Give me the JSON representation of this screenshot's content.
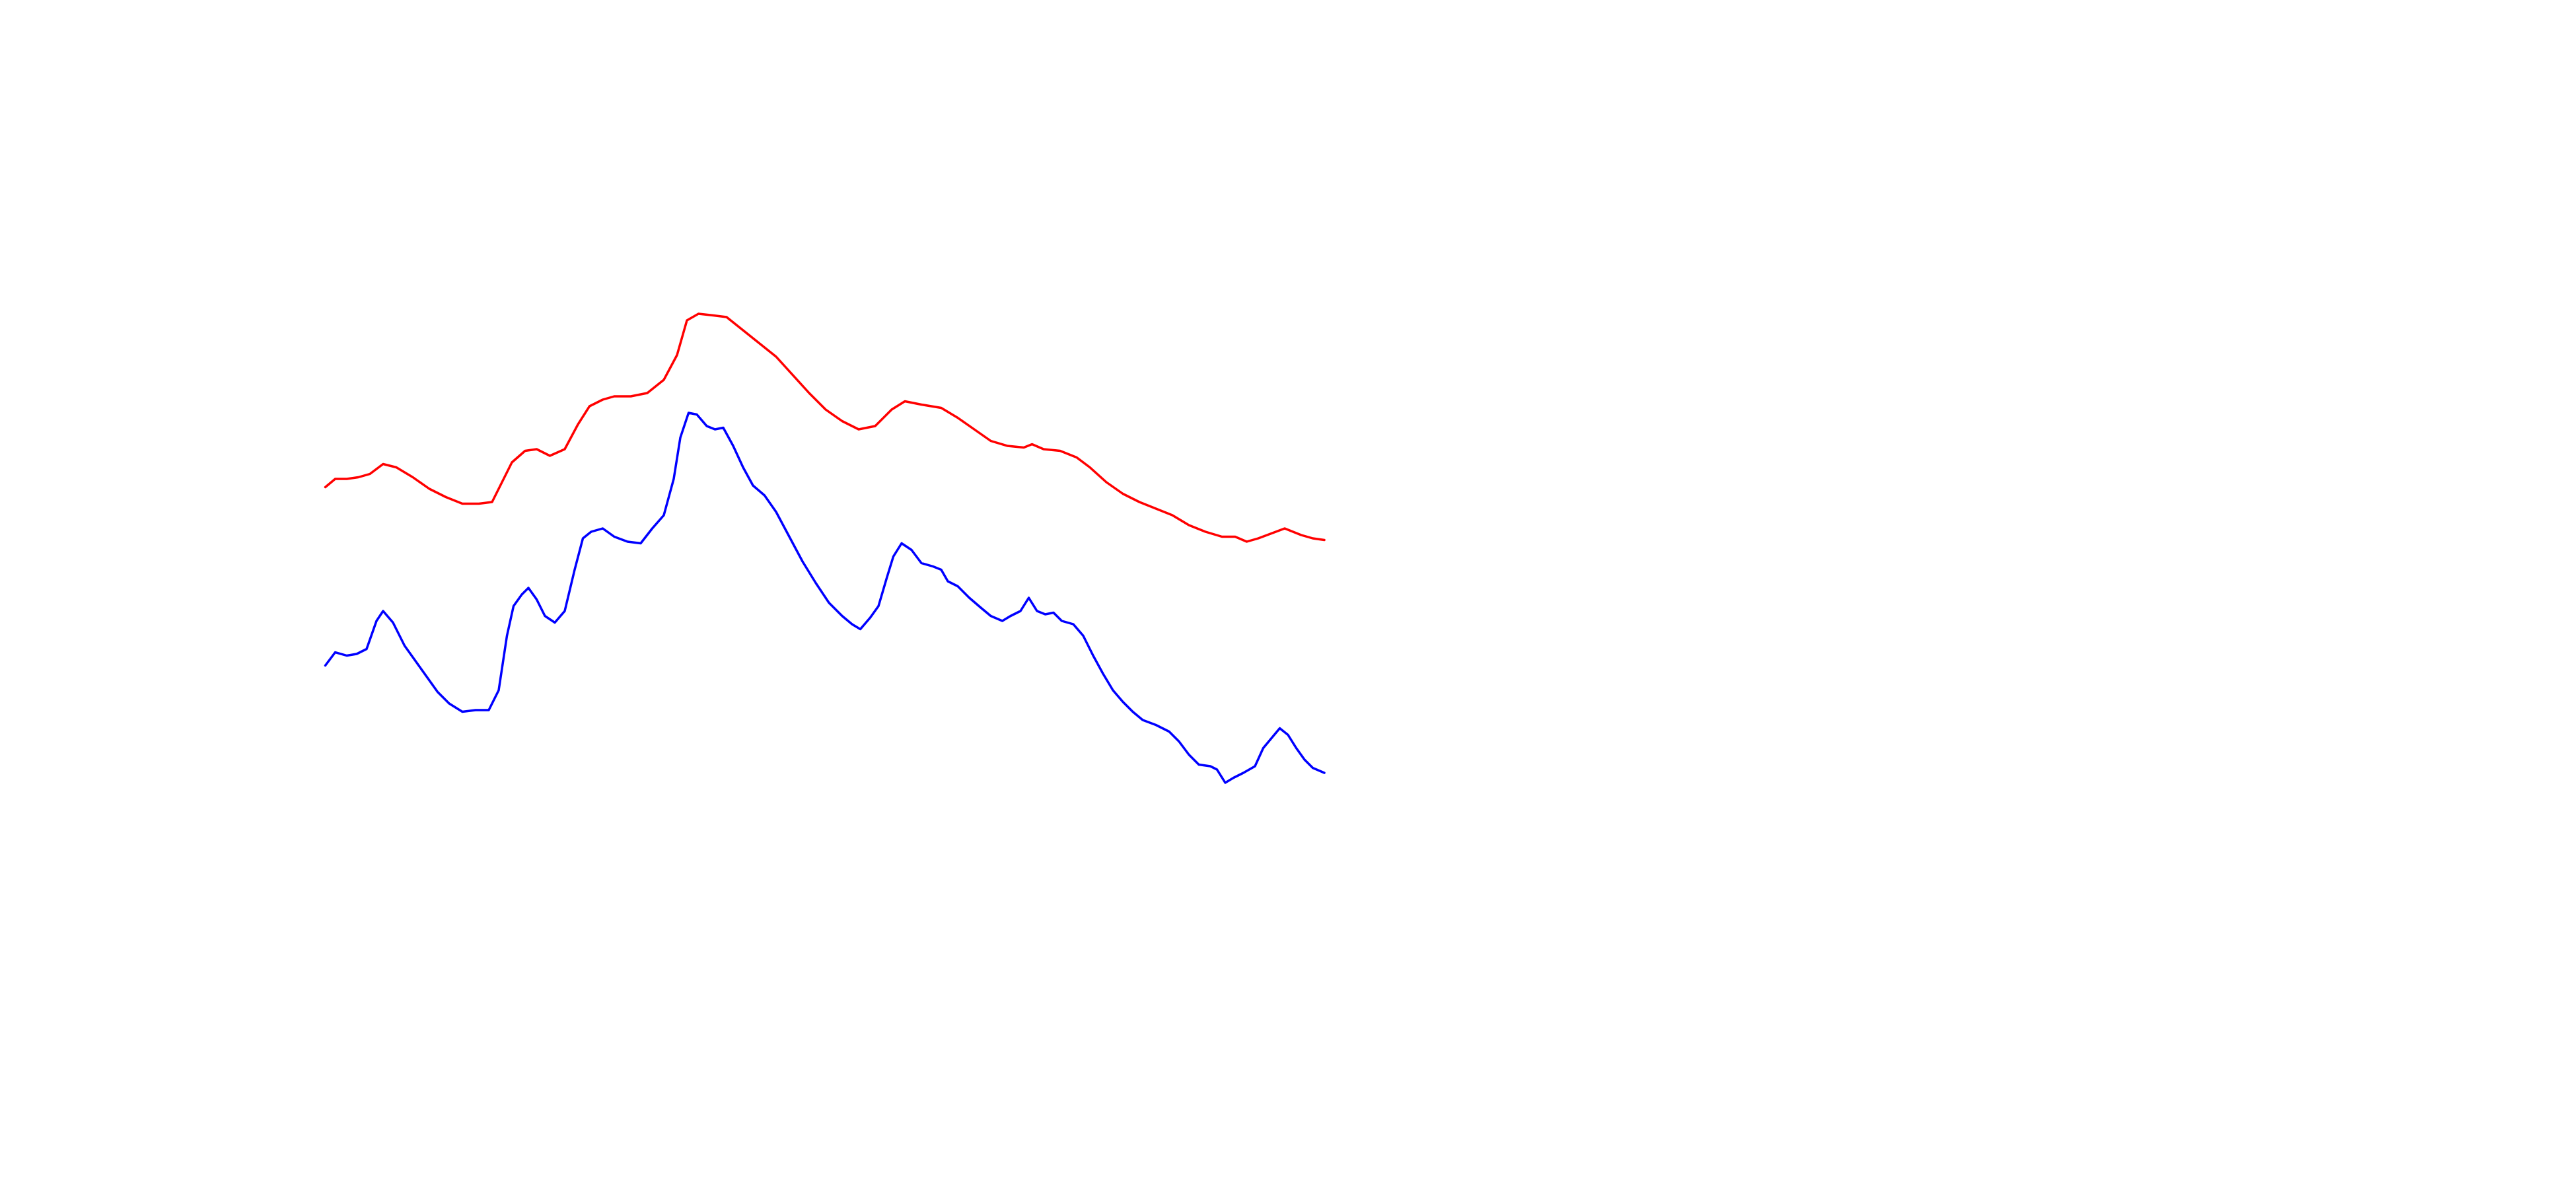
{
  "chart_data": {
    "type": "line",
    "xlim": [
      0,
      605
    ],
    "ylim": [
      0,
      720
    ],
    "series": [
      {
        "color": "#ff0000",
        "x": [
          0,
          6,
          13,
          20,
          27,
          35,
          43,
          53,
          63,
          73,
          83,
          93,
          101,
          108,
          113,
          121,
          128,
          136,
          145,
          153,
          160,
          168,
          175,
          185,
          195,
          205,
          213,
          219,
          226,
          235,
          243,
          253,
          263,
          273,
          283,
          293,
          303,
          313,
          323,
          333,
          343,
          351,
          361,
          373,
          383,
          393,
          403,
          413,
          423,
          428,
          435,
          445,
          455,
          463,
          473,
          483,
          493,
          503,
          513,
          523,
          533,
          543,
          551,
          558,
          565,
          573,
          581,
          591,
          598,
          605
        ],
        "values": [
          425,
          430,
          430,
          431,
          433,
          439,
          437,
          431,
          424,
          419,
          415,
          415,
          416,
          430,
          440,
          447,
          448,
          444,
          448,
          463,
          474,
          478,
          480,
          480,
          482,
          490,
          505,
          526,
          530,
          529,
          528,
          520,
          512,
          504,
          493,
          482,
          472,
          465,
          460,
          462,
          472,
          477,
          475,
          473,
          467,
          460,
          453,
          450,
          449,
          451,
          448,
          447,
          443,
          437,
          428,
          421,
          416,
          412,
          408,
          402,
          398,
          395,
          395,
          392,
          394,
          397,
          400,
          396,
          394,
          393
        ]
      },
      {
        "color": "#0000ff",
        "x": [
          0,
          6,
          13,
          19,
          25,
          31,
          35,
          41,
          48,
          58,
          68,
          75,
          83,
          91,
          99,
          105,
          110,
          114,
          119,
          123,
          128,
          133,
          139,
          145,
          151,
          156,
          161,
          168,
          175,
          183,
          191,
          198,
          205,
          211,
          215,
          220,
          225,
          231,
          236,
          241,
          247,
          253,
          259,
          266,
          273,
          281,
          289,
          297,
          305,
          313,
          319,
          324,
          330,
          335,
          340,
          344,
          349,
          355,
          361,
          368,
          373,
          377,
          383,
          390,
          397,
          403,
          410,
          415,
          421,
          426,
          431,
          436,
          441,
          446,
          453,
          459,
          465,
          471,
          477,
          483,
          489,
          495,
          503,
          511,
          517,
          523,
          529,
          536,
          540,
          545,
          550,
          556,
          563,
          568,
          573,
          578,
          583,
          588,
          593,
          598,
          605
        ],
        "values": [
          317,
          325,
          323,
          324,
          327,
          344,
          350,
          343,
          329,
          315,
          301,
          294,
          289,
          290,
          290,
          302,
          335,
          353,
          360,
          364,
          357,
          347,
          343,
          350,
          375,
          394,
          398,
          400,
          395,
          392,
          391,
          400,
          408,
          430,
          455,
          470,
          469,
          462,
          460,
          461,
          450,
          437,
          426,
          420,
          410,
          395,
          380,
          367,
          355,
          347,
          342,
          339,
          346,
          353,
          370,
          383,
          391,
          387,
          379,
          377,
          375,
          368,
          365,
          358,
          352,
          347,
          344,
          347,
          350,
          358,
          350,
          348,
          349,
          344,
          342,
          335,
          323,
          312,
          302,
          295,
          289,
          284,
          281,
          277,
          271,
          263,
          257,
          256,
          254,
          246,
          249,
          252,
          256,
          267,
          273,
          279,
          275,
          267,
          260,
          255,
          252
        ]
      }
    ]
  }
}
